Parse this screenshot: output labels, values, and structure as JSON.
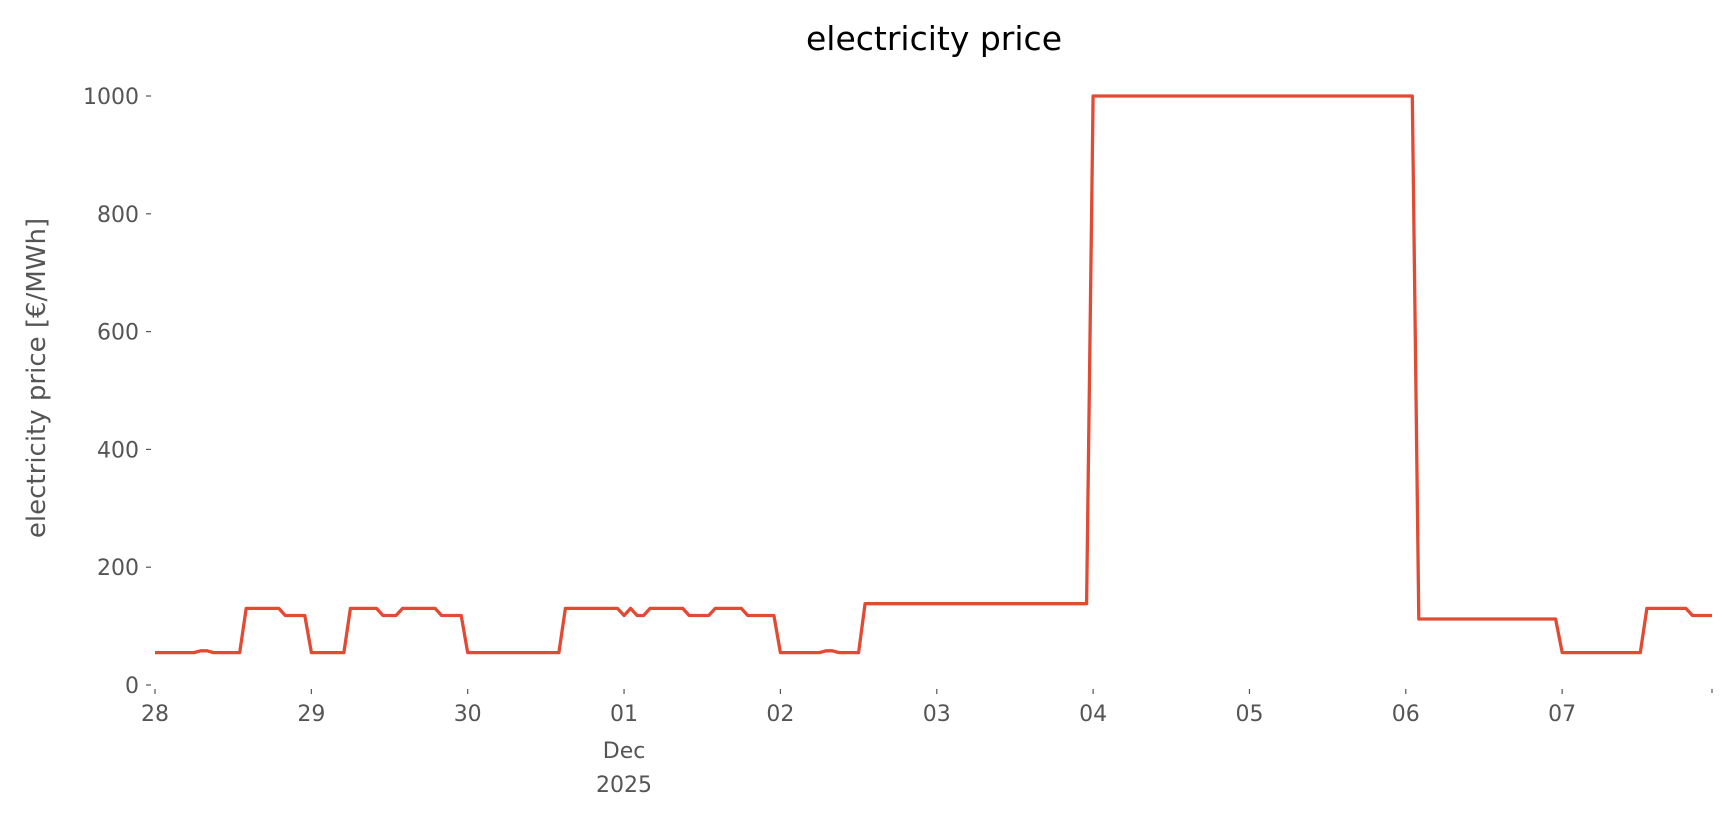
{
  "chart_data": {
    "type": "line",
    "title": "electricity price",
    "ylabel": "electricity price [€/MWh]",
    "xlabel": "",
    "ylim": [
      0,
      1000
    ],
    "xlim": [
      "2025-11-28T00:00",
      "2025-12-07T23:00"
    ],
    "yticks": [
      0,
      200,
      400,
      600,
      800,
      1000
    ],
    "xticks": [
      {
        "date": "2025-11-28",
        "label": "28"
      },
      {
        "date": "2025-11-29",
        "label": "29"
      },
      {
        "date": "2025-11-30",
        "label": "30"
      },
      {
        "date": "2025-12-01",
        "label": "01",
        "sub1": "Dec",
        "sub2": "2025"
      },
      {
        "date": "2025-12-02",
        "label": "02"
      },
      {
        "date": "2025-12-03",
        "label": "03"
      },
      {
        "date": "2025-12-04",
        "label": "04"
      },
      {
        "date": "2025-12-05",
        "label": "05"
      },
      {
        "date": "2025-12-06",
        "label": "06"
      },
      {
        "date": "2025-12-07",
        "label": "07"
      }
    ],
    "grid": false,
    "color": "#E24A33",
    "points": [
      [
        "2025-11-28T00:00",
        55
      ],
      [
        "2025-11-28T06:00",
        55
      ],
      [
        "2025-11-28T07:00",
        58
      ],
      [
        "2025-11-28T08:00",
        58
      ],
      [
        "2025-11-28T09:00",
        55
      ],
      [
        "2025-11-28T13:00",
        55
      ],
      [
        "2025-11-28T14:00",
        130
      ],
      [
        "2025-11-28T19:00",
        130
      ],
      [
        "2025-11-28T20:00",
        118
      ],
      [
        "2025-11-28T23:00",
        118
      ],
      [
        "2025-11-29T00:00",
        55
      ],
      [
        "2025-11-29T05:00",
        55
      ],
      [
        "2025-11-29T06:00",
        130
      ],
      [
        "2025-11-29T10:00",
        130
      ],
      [
        "2025-11-29T11:00",
        118
      ],
      [
        "2025-11-29T13:00",
        118
      ],
      [
        "2025-11-29T14:00",
        130
      ],
      [
        "2025-11-29T19:00",
        130
      ],
      [
        "2025-11-29T20:00",
        118
      ],
      [
        "2025-11-29T23:00",
        118
      ],
      [
        "2025-11-30T00:00",
        55
      ],
      [
        "2025-11-30T14:00",
        55
      ],
      [
        "2025-11-30T15:00",
        130
      ],
      [
        "2025-11-30T23:00",
        130
      ],
      [
        "2025-12-01T00:00",
        118
      ],
      [
        "2025-12-01T01:00",
        130
      ],
      [
        "2025-12-01T02:00",
        118
      ],
      [
        "2025-12-01T03:00",
        118
      ],
      [
        "2025-12-01T04:00",
        130
      ],
      [
        "2025-12-01T09:00",
        130
      ],
      [
        "2025-12-01T10:00",
        118
      ],
      [
        "2025-12-01T13:00",
        118
      ],
      [
        "2025-12-01T14:00",
        130
      ],
      [
        "2025-12-01T18:00",
        130
      ],
      [
        "2025-12-01T19:00",
        118
      ],
      [
        "2025-12-01T23:00",
        118
      ],
      [
        "2025-12-02T00:00",
        55
      ],
      [
        "2025-12-02T06:00",
        55
      ],
      [
        "2025-12-02T07:00",
        58
      ],
      [
        "2025-12-02T08:00",
        58
      ],
      [
        "2025-12-02T09:00",
        55
      ],
      [
        "2025-12-02T12:00",
        55
      ],
      [
        "2025-12-02T13:00",
        138
      ],
      [
        "2025-12-03T23:00",
        138
      ],
      [
        "2025-12-04T00:00",
        1000
      ],
      [
        "2025-12-06T01:00",
        1000
      ],
      [
        "2025-12-06T02:00",
        112
      ],
      [
        "2025-12-06T23:00",
        112
      ],
      [
        "2025-12-07T00:00",
        55
      ],
      [
        "2025-12-07T12:00",
        55
      ],
      [
        "2025-12-07T13:00",
        130
      ],
      [
        "2025-12-07T19:00",
        130
      ],
      [
        "2025-12-07T20:00",
        118
      ],
      [
        "2025-12-07T23:00",
        118
      ]
    ]
  }
}
